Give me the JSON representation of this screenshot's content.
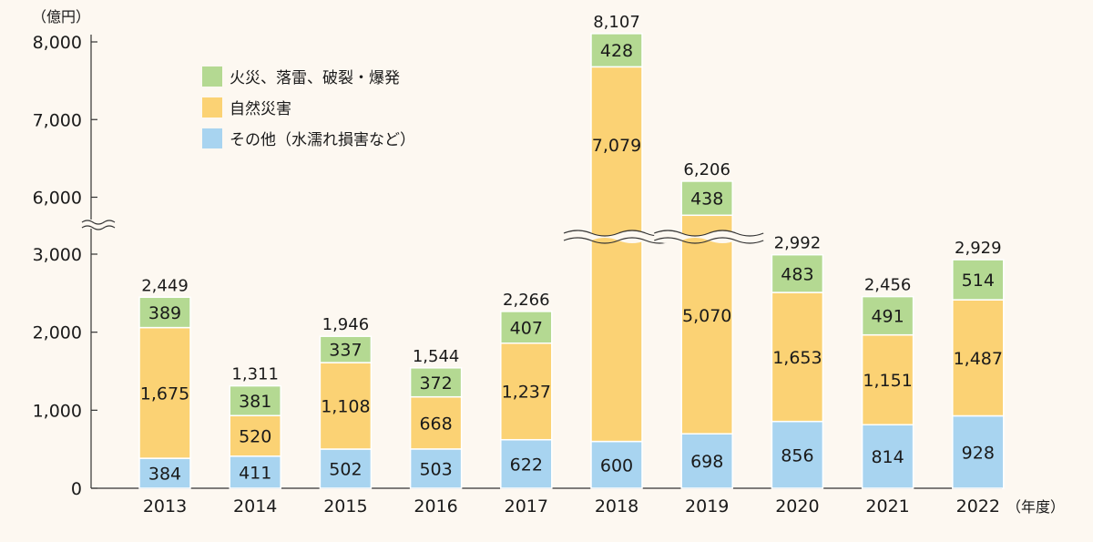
{
  "chart_data": {
    "type": "bar",
    "stacked": true,
    "broken_axis": true,
    "y_unit": "（億円）",
    "x_unit": "（年度）",
    "categories": [
      "2013",
      "2014",
      "2015",
      "2016",
      "2017",
      "2018",
      "2019",
      "2020",
      "2021",
      "2022"
    ],
    "series": [
      {
        "name": "その他（水濡れ損害など）",
        "color": "#a8d4f0",
        "values": [
          384,
          411,
          502,
          503,
          622,
          600,
          698,
          856,
          814,
          928
        ]
      },
      {
        "name": "自然災害",
        "color": "#fbd274",
        "values": [
          1675,
          520,
          1108,
          668,
          1237,
          7079,
          5070,
          1653,
          1151,
          1487
        ]
      },
      {
        "name": "火災、落雷、破裂・爆発",
        "color": "#b4d992",
        "values": [
          389,
          381,
          337,
          372,
          407,
          428,
          438,
          483,
          491,
          514
        ]
      }
    ],
    "totals": [
      "2,449",
      "1,311",
      "1,946",
      "1,544",
      "2,266",
      "8,107",
      "6,206",
      "2,992",
      "2,456",
      "2,929"
    ],
    "segment_labels": [
      [
        "384",
        "411",
        "502",
        "503",
        "622",
        "600",
        "698",
        "856",
        "814",
        "928"
      ],
      [
        "1,675",
        "520",
        "1,108",
        "668",
        "1,237",
        "7,079",
        "5,070",
        "1,653",
        "1,151",
        "1,487"
      ],
      [
        "389",
        "381",
        "337",
        "372",
        "407",
        "428",
        "438",
        "483",
        "491",
        "514"
      ]
    ],
    "y_ticks_lower": [
      0,
      1000,
      2000,
      3000
    ],
    "y_ticks_upper": [
      6000,
      7000,
      8000
    ],
    "y_tick_labels_lower": [
      "0",
      "1,000",
      "2,000",
      "3,000"
    ],
    "y_tick_labels_upper": [
      "6,000",
      "7,000",
      "8,000"
    ],
    "ylim_lower": [
      0,
      3000
    ],
    "ylim_upper": [
      5600,
      8200
    ],
    "legend_order": [
      2,
      1,
      0
    ],
    "legend_position": "top-left",
    "grid": false
  }
}
